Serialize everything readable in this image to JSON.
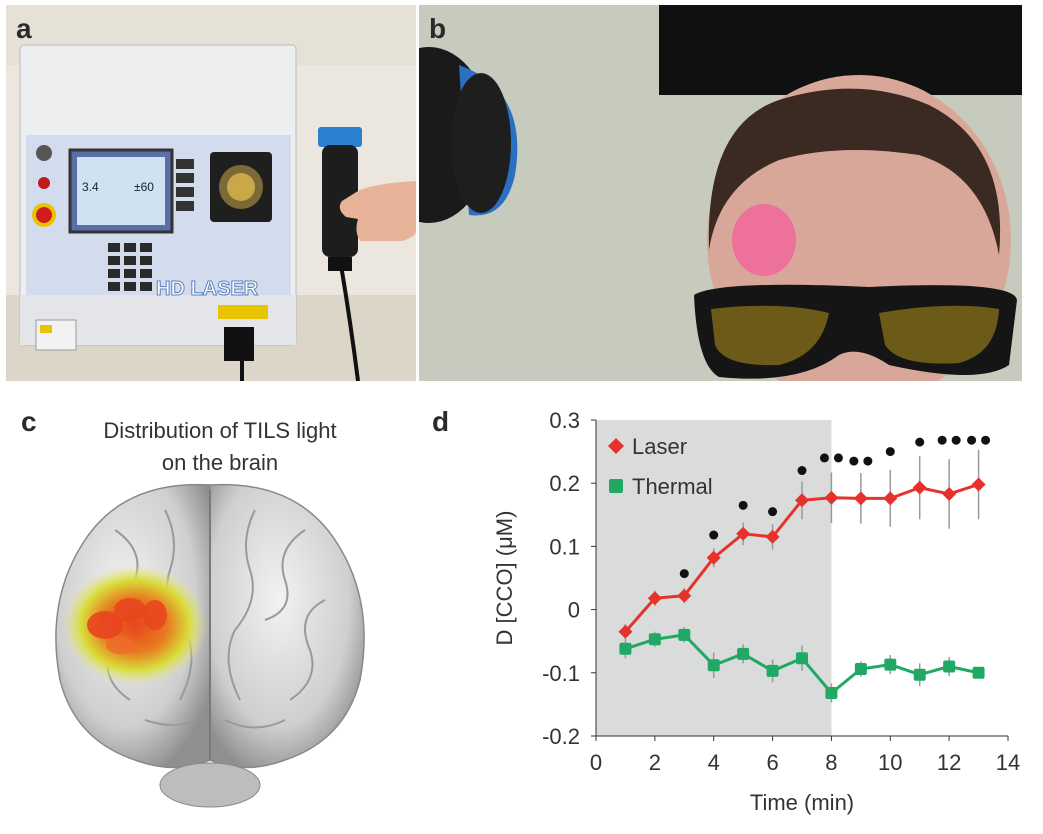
{
  "panels": {
    "a": {
      "label": "a",
      "device": {
        "screen_value_1": "3.4",
        "screen_value_2": "±60",
        "brand": "HD LASER"
      }
    },
    "b": {
      "label": "b"
    },
    "c": {
      "label": "c",
      "title_line1": "Distribution of TILS light",
      "title_line2": "on the brain"
    },
    "d": {
      "label": "d"
    }
  },
  "colors": {
    "laser": "#e5322d",
    "thermal": "#21a864",
    "shade": "#d9dcdb",
    "stim_pink": "#f0679a",
    "heat_red": "#e8441f",
    "heat_yellow": "#e6e23a"
  },
  "chart_data": {
    "type": "line",
    "xlabel": "Time (min)",
    "ylabel": "D [CCO] (μM)",
    "xlim": [
      0,
      14
    ],
    "ylim": [
      -0.2,
      0.3
    ],
    "xticks": [
      0,
      2,
      4,
      6,
      8,
      10,
      12,
      14
    ],
    "yticks": [
      -0.2,
      -0.1,
      0,
      0.1,
      0.2,
      0.3
    ],
    "ytick_labels": [
      "-0.2",
      "-0.1",
      "0",
      "0.1",
      "0.2",
      "0.3"
    ],
    "shaded_x_range": [
      0,
      8
    ],
    "legend": "top-left",
    "x": [
      1,
      2,
      3,
      4,
      5,
      6,
      7,
      8,
      9,
      10,
      11,
      12,
      13
    ],
    "series": [
      {
        "name": "Laser",
        "color": "#e5322d",
        "marker": "diamond",
        "values": [
          -0.035,
          0.018,
          0.022,
          0.082,
          0.12,
          0.115,
          0.173,
          0.177,
          0.176,
          0.176,
          0.193,
          0.183,
          0.198
        ],
        "errors": [
          0.012,
          0.012,
          0.012,
          0.015,
          0.018,
          0.02,
          0.03,
          0.04,
          0.04,
          0.045,
          0.05,
          0.055,
          0.055
        ]
      },
      {
        "name": "Thermal",
        "color": "#21a864",
        "marker": "square",
        "values": [
          -0.062,
          -0.047,
          -0.04,
          -0.088,
          -0.07,
          -0.097,
          -0.077,
          -0.132,
          -0.094,
          -0.087,
          -0.103,
          -0.09,
          -0.1
        ],
        "errors": [
          0.015,
          0.012,
          0.012,
          0.02,
          0.015,
          0.018,
          0.02,
          0.015,
          0.012,
          0.015,
          0.018,
          0.015,
          0.008
        ]
      }
    ],
    "significance": [
      {
        "x": 3,
        "count": 1,
        "y": 0.057
      },
      {
        "x": 4,
        "count": 1,
        "y": 0.118
      },
      {
        "x": 5,
        "count": 1,
        "y": 0.165
      },
      {
        "x": 6,
        "count": 1,
        "y": 0.155
      },
      {
        "x": 7,
        "count": 1,
        "y": 0.22
      },
      {
        "x": 8,
        "count": 2,
        "y": 0.24
      },
      {
        "x": 9,
        "count": 2,
        "y": 0.235
      },
      {
        "x": 10,
        "count": 1,
        "y": 0.25
      },
      {
        "x": 11,
        "count": 1,
        "y": 0.265
      },
      {
        "x": 12,
        "count": 2,
        "y": 0.268
      },
      {
        "x": 13,
        "count": 2,
        "y": 0.268
      }
    ]
  }
}
